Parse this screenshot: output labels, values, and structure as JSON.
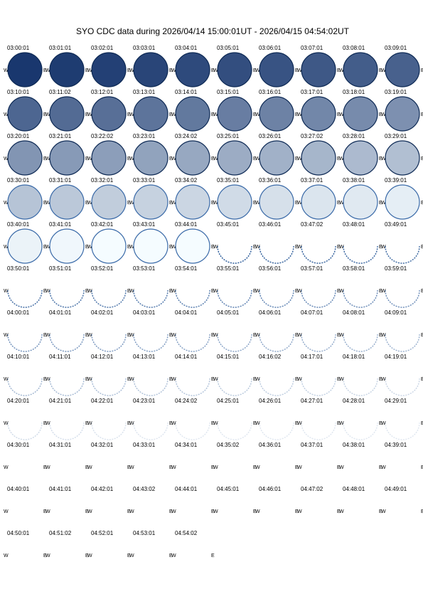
{
  "title": "SYO CDC data during 2026/04/14 15:00:01UT - 2026/04/15 04:54:02UT",
  "west_label": "W",
  "east_label": "E",
  "frames": [
    [
      "03:00:01",
      "03:01:01",
      "03:02:01",
      "03:03:01",
      "03:04:01",
      "03:05:01",
      "03:06:01",
      "03:07:01",
      "03:08:01",
      "03:09:01"
    ],
    [
      "03:10:01",
      "03:11:02",
      "03:12:01",
      "03:13:01",
      "03:14:01",
      "03:15:01",
      "03:16:01",
      "03:17:01",
      "03:18:01",
      "03:19:01"
    ],
    [
      "03:20:01",
      "03:21:01",
      "03:22:02",
      "03:23:01",
      "03:24:02",
      "03:25:01",
      "03:26:01",
      "03:27:02",
      "03:28:01",
      "03:29:01"
    ],
    [
      "03:30:01",
      "03:31:01",
      "03:32:01",
      "03:33:01",
      "03:34:02",
      "03:35:01",
      "03:36:01",
      "03:37:01",
      "03:38:01",
      "03:39:01"
    ],
    [
      "03:40:01",
      "03:41:01",
      "03:42:01",
      "03:43:01",
      "03:44:01",
      "03:45:01",
      "03:46:01",
      "03:47:02",
      "03:48:01",
      "03:49:01"
    ],
    [
      "03:50:01",
      "03:51:01",
      "03:52:01",
      "03:53:01",
      "03:54:01",
      "03:55:01",
      "03:56:01",
      "03:57:01",
      "03:58:01",
      "03:59:01"
    ],
    [
      "04:00:01",
      "04:01:01",
      "04:02:01",
      "04:03:01",
      "04:04:01",
      "04:05:01",
      "04:06:01",
      "04:07:01",
      "04:08:01",
      "04:09:01"
    ],
    [
      "04:10:01",
      "04:11:01",
      "04:12:01",
      "04:13:01",
      "04:14:01",
      "04:15:01",
      "04:16:02",
      "04:17:01",
      "04:18:01",
      "04:19:01"
    ],
    [
      "04:20:01",
      "04:21:01",
      "04:22:01",
      "04:23:01",
      "04:24:02",
      "04:25:01",
      "04:26:01",
      "04:27:01",
      "04:28:01",
      "04:29:01"
    ],
    [
      "04:30:01",
      "04:31:01",
      "04:32:01",
      "04:33:01",
      "04:34:01",
      "04:35:02",
      "04:36:01",
      "04:37:01",
      "04:38:01",
      "04:39:01"
    ],
    [
      "04:40:01",
      "04:41:01",
      "04:42:01",
      "04:43:02",
      "04:44:01",
      "04:45:01",
      "04:46:01",
      "04:47:02",
      "04:48:01",
      "04:49:01"
    ],
    [
      "04:50:01",
      "04:51:02",
      "04:52:01",
      "04:53:01",
      "04:54:02"
    ]
  ]
}
